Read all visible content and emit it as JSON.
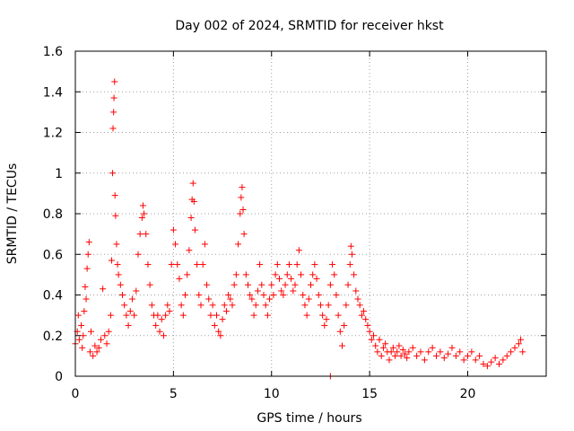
{
  "chart_data": {
    "type": "scatter",
    "title": "Day 002 of 2024, SRMTID for receiver hkst",
    "xlabel": "GPS time / hours",
    "ylabel": "SRMTID / TECUs",
    "xlim": [
      0,
      24
    ],
    "ylim": [
      0,
      1.6
    ],
    "xticks": [
      "0",
      "5",
      "10",
      "15",
      "20"
    ],
    "yticks": [
      "0",
      "0.2",
      "0.4",
      "0.6",
      "0.8",
      "1",
      "1.2",
      "1.4",
      "1.6"
    ],
    "xtick_values": [
      0,
      5,
      10,
      15,
      20
    ],
    "ytick_values": [
      0,
      0.2,
      0.4,
      0.6,
      0.8,
      1.0,
      1.2,
      1.4,
      1.6
    ],
    "grid": true,
    "marker": "+",
    "series": [
      {
        "name": "SRMTID",
        "color": "#ff0000",
        "points": [
          [
            0.0,
            0.16
          ],
          [
            0.1,
            0.22
          ],
          [
            0.15,
            0.3
          ],
          [
            0.2,
            0.18
          ],
          [
            0.3,
            0.25
          ],
          [
            0.35,
            0.14
          ],
          [
            0.4,
            0.2
          ],
          [
            0.45,
            0.32
          ],
          [
            0.5,
            0.44
          ],
          [
            0.55,
            0.38
          ],
          [
            0.6,
            0.53
          ],
          [
            0.65,
            0.6
          ],
          [
            0.7,
            0.66
          ],
          [
            0.75,
            0.12
          ],
          [
            0.8,
            0.22
          ],
          [
            0.9,
            0.1
          ],
          [
            1.0,
            0.15
          ],
          [
            1.1,
            0.12
          ],
          [
            1.2,
            0.14
          ],
          [
            1.3,
            0.18
          ],
          [
            1.4,
            0.43
          ],
          [
            1.5,
            0.2
          ],
          [
            1.6,
            0.16
          ],
          [
            1.7,
            0.22
          ],
          [
            1.8,
            0.3
          ],
          [
            1.85,
            0.57
          ],
          [
            1.9,
            1.0
          ],
          [
            1.92,
            1.22
          ],
          [
            1.95,
            1.3
          ],
          [
            1.97,
            1.37
          ],
          [
            2.0,
            1.45
          ],
          [
            2.02,
            0.89
          ],
          [
            2.05,
            0.79
          ],
          [
            2.1,
            0.65
          ],
          [
            2.15,
            0.55
          ],
          [
            2.2,
            0.5
          ],
          [
            2.3,
            0.45
          ],
          [
            2.4,
            0.4
          ],
          [
            2.5,
            0.35
          ],
          [
            2.6,
            0.3
          ],
          [
            2.7,
            0.25
          ],
          [
            2.8,
            0.32
          ],
          [
            2.9,
            0.38
          ],
          [
            3.0,
            0.3
          ],
          [
            3.1,
            0.42
          ],
          [
            3.2,
            0.6
          ],
          [
            3.3,
            0.7
          ],
          [
            3.4,
            0.78
          ],
          [
            3.45,
            0.84
          ],
          [
            3.5,
            0.8
          ],
          [
            3.6,
            0.7
          ],
          [
            3.7,
            0.55
          ],
          [
            3.8,
            0.45
          ],
          [
            3.9,
            0.35
          ],
          [
            4.0,
            0.3
          ],
          [
            4.1,
            0.25
          ],
          [
            4.2,
            0.3
          ],
          [
            4.3,
            0.22
          ],
          [
            4.4,
            0.28
          ],
          [
            4.5,
            0.2
          ],
          [
            4.6,
            0.3
          ],
          [
            4.7,
            0.35
          ],
          [
            4.8,
            0.32
          ],
          [
            4.9,
            0.55
          ],
          [
            5.0,
            0.72
          ],
          [
            5.1,
            0.65
          ],
          [
            5.2,
            0.55
          ],
          [
            5.3,
            0.48
          ],
          [
            5.4,
            0.35
          ],
          [
            5.5,
            0.3
          ],
          [
            5.6,
            0.4
          ],
          [
            5.7,
            0.5
          ],
          [
            5.8,
            0.62
          ],
          [
            5.9,
            0.78
          ],
          [
            5.95,
            0.87
          ],
          [
            6.0,
            0.95
          ],
          [
            6.05,
            0.86
          ],
          [
            6.1,
            0.72
          ],
          [
            6.2,
            0.55
          ],
          [
            6.3,
            0.4
          ],
          [
            6.4,
            0.35
          ],
          [
            6.5,
            0.55
          ],
          [
            6.6,
            0.65
          ],
          [
            6.7,
            0.45
          ],
          [
            6.8,
            0.38
          ],
          [
            6.9,
            0.3
          ],
          [
            7.0,
            0.35
          ],
          [
            7.1,
            0.25
          ],
          [
            7.2,
            0.3
          ],
          [
            7.3,
            0.22
          ],
          [
            7.4,
            0.2
          ],
          [
            7.5,
            0.28
          ],
          [
            7.6,
            0.35
          ],
          [
            7.7,
            0.32
          ],
          [
            7.8,
            0.4
          ],
          [
            7.9,
            0.38
          ],
          [
            8.0,
            0.35
          ],
          [
            8.1,
            0.45
          ],
          [
            8.2,
            0.5
          ],
          [
            8.3,
            0.65
          ],
          [
            8.4,
            0.8
          ],
          [
            8.45,
            0.88
          ],
          [
            8.5,
            0.93
          ],
          [
            8.55,
            0.82
          ],
          [
            8.6,
            0.7
          ],
          [
            8.7,
            0.5
          ],
          [
            8.8,
            0.45
          ],
          [
            8.9,
            0.4
          ],
          [
            9.0,
            0.38
          ],
          [
            9.1,
            0.3
          ],
          [
            9.2,
            0.35
          ],
          [
            9.3,
            0.42
          ],
          [
            9.4,
            0.55
          ],
          [
            9.5,
            0.45
          ],
          [
            9.6,
            0.4
          ],
          [
            9.7,
            0.35
          ],
          [
            9.8,
            0.3
          ],
          [
            9.9,
            0.38
          ],
          [
            10.0,
            0.45
          ],
          [
            10.1,
            0.4
          ],
          [
            10.2,
            0.5
          ],
          [
            10.3,
            0.55
          ],
          [
            10.4,
            0.48
          ],
          [
            10.5,
            0.42
          ],
          [
            10.6,
            0.4
          ],
          [
            10.7,
            0.45
          ],
          [
            10.8,
            0.5
          ],
          [
            10.9,
            0.55
          ],
          [
            11.0,
            0.48
          ],
          [
            11.1,
            0.42
          ],
          [
            11.2,
            0.45
          ],
          [
            11.3,
            0.55
          ],
          [
            11.4,
            0.62
          ],
          [
            11.5,
            0.5
          ],
          [
            11.6,
            0.4
          ],
          [
            11.7,
            0.35
          ],
          [
            11.8,
            0.3
          ],
          [
            11.9,
            0.38
          ],
          [
            12.0,
            0.45
          ],
          [
            12.1,
            0.5
          ],
          [
            12.2,
            0.55
          ],
          [
            12.3,
            0.48
          ],
          [
            12.4,
            0.4
          ],
          [
            12.5,
            0.35
          ],
          [
            12.6,
            0.3
          ],
          [
            12.7,
            0.25
          ],
          [
            12.8,
            0.28
          ],
          [
            12.9,
            0.35
          ],
          [
            13.0,
            0.45
          ],
          [
            13.1,
            0.55
          ],
          [
            13.2,
            0.5
          ],
          [
            13.3,
            0.4
          ],
          [
            13.4,
            0.3
          ],
          [
            13.5,
            0.22
          ],
          [
            13.6,
            0.15
          ],
          [
            13.7,
            0.25
          ],
          [
            13.8,
            0.35
          ],
          [
            13.9,
            0.45
          ],
          [
            14.0,
            0.55
          ],
          [
            14.05,
            0.64
          ],
          [
            14.1,
            0.6
          ],
          [
            14.2,
            0.5
          ],
          [
            14.3,
            0.42
          ],
          [
            14.4,
            0.38
          ],
          [
            14.5,
            0.35
          ],
          [
            14.6,
            0.3
          ],
          [
            14.7,
            0.32
          ],
          [
            14.8,
            0.28
          ],
          [
            14.9,
            0.25
          ],
          [
            15.0,
            0.22
          ],
          [
            15.1,
            0.18
          ],
          [
            15.2,
            0.2
          ],
          [
            15.3,
            0.15
          ],
          [
            15.4,
            0.12
          ],
          [
            15.5,
            0.18
          ],
          [
            15.6,
            0.1
          ],
          [
            15.7,
            0.14
          ],
          [
            15.8,
            0.16
          ],
          [
            15.9,
            0.12
          ],
          [
            16.0,
            0.08
          ],
          [
            16.1,
            0.12
          ],
          [
            16.2,
            0.14
          ],
          [
            16.3,
            0.1
          ],
          [
            16.4,
            0.12
          ],
          [
            16.5,
            0.15
          ],
          [
            16.6,
            0.1
          ],
          [
            16.7,
            0.13
          ],
          [
            16.8,
            0.11
          ],
          [
            16.9,
            0.09
          ],
          [
            17.0,
            0.12
          ],
          [
            17.2,
            0.14
          ],
          [
            17.4,
            0.1
          ],
          [
            17.6,
            0.12
          ],
          [
            17.8,
            0.08
          ],
          [
            18.0,
            0.12
          ],
          [
            18.2,
            0.14
          ],
          [
            18.4,
            0.1
          ],
          [
            18.6,
            0.12
          ],
          [
            18.8,
            0.09
          ],
          [
            19.0,
            0.11
          ],
          [
            19.2,
            0.14
          ],
          [
            19.4,
            0.1
          ],
          [
            19.6,
            0.12
          ],
          [
            19.8,
            0.08
          ],
          [
            20.0,
            0.1
          ],
          [
            20.2,
            0.12
          ],
          [
            20.4,
            0.08
          ],
          [
            20.6,
            0.1
          ],
          [
            20.8,
            0.06
          ],
          [
            21.0,
            0.05
          ],
          [
            21.2,
            0.07
          ],
          [
            21.4,
            0.09
          ],
          [
            21.6,
            0.06
          ],
          [
            21.8,
            0.08
          ],
          [
            22.0,
            0.1
          ],
          [
            22.2,
            0.12
          ],
          [
            22.4,
            0.14
          ],
          [
            22.6,
            0.16
          ],
          [
            22.7,
            0.18
          ],
          [
            22.8,
            0.12
          ],
          [
            13.0,
            0.0
          ]
        ]
      }
    ]
  }
}
